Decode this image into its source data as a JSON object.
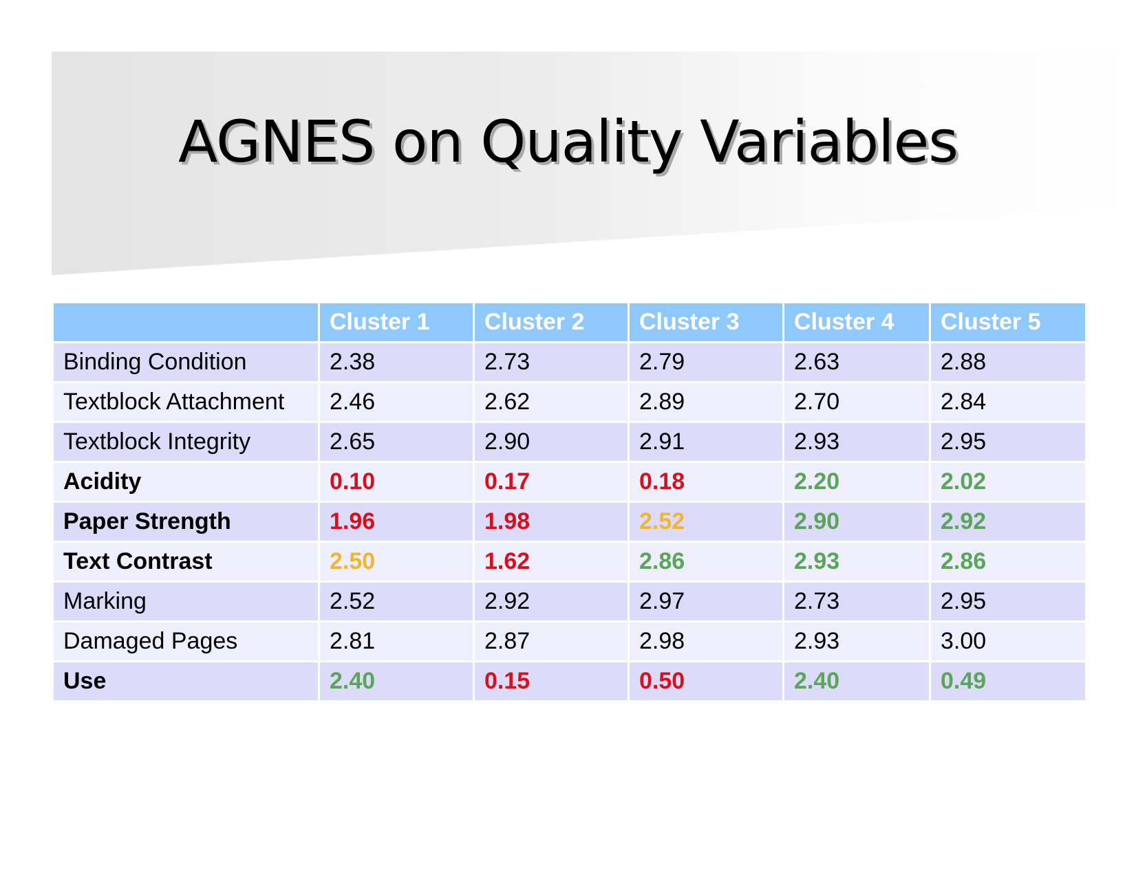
{
  "slide": {
    "title": "AGNES on Quality Variables"
  },
  "colors": {
    "header_bg": "#8fc9fb",
    "row_odd_bg": "#dcdcfa",
    "row_even_bg": "#eeeefc",
    "red": "#d7101e",
    "amber": "#f0b632",
    "green": "#5aa55a"
  },
  "table": {
    "corner": "",
    "columns": [
      "Cluster 1",
      "Cluster 2",
      "Cluster 3",
      "Cluster 4",
      "Cluster 5"
    ],
    "rows": [
      {
        "label": "Binding Condition",
        "bold": false,
        "values": [
          "2.38",
          "2.73",
          "2.79",
          "2.63",
          "2.88"
        ],
        "colors": [
          "",
          "",
          "",
          "",
          ""
        ]
      },
      {
        "label": "Textblock Attachment",
        "bold": false,
        "values": [
          "2.46",
          "2.62",
          "2.89",
          "2.70",
          "2.84"
        ],
        "colors": [
          "",
          "",
          "",
          "",
          ""
        ]
      },
      {
        "label": "Textblock Integrity",
        "bold": false,
        "values": [
          "2.65",
          "2.90",
          "2.91",
          "2.93",
          "2.95"
        ],
        "colors": [
          "",
          "",
          "",
          "",
          ""
        ]
      },
      {
        "label": "Acidity",
        "bold": true,
        "values": [
          "0.10",
          "0.17",
          "0.18",
          "2.20",
          "2.02"
        ],
        "colors": [
          "red",
          "red",
          "red",
          "green",
          "green"
        ]
      },
      {
        "label": "Paper Strength",
        "bold": true,
        "values": [
          "1.96",
          "1.98",
          "2.52",
          "2.90",
          "2.92"
        ],
        "colors": [
          "red",
          "red",
          "amber",
          "green",
          "green"
        ]
      },
      {
        "label": "Text Contrast",
        "bold": true,
        "values": [
          "2.50",
          "1.62",
          "2.86",
          "2.93",
          "2.86"
        ],
        "colors": [
          "amber",
          "red",
          "green",
          "green",
          "green"
        ]
      },
      {
        "label": "Marking",
        "bold": false,
        "values": [
          "2.52",
          "2.92",
          "2.97",
          "2.73",
          "2.95"
        ],
        "colors": [
          "",
          "",
          "",
          "",
          ""
        ]
      },
      {
        "label": "Damaged Pages",
        "bold": false,
        "values": [
          "2.81",
          "2.87",
          "2.98",
          "2.93",
          "3.00"
        ],
        "colors": [
          "",
          "",
          "",
          "",
          ""
        ]
      },
      {
        "label": "Use",
        "bold": true,
        "values": [
          "2.40",
          "0.15",
          "0.50",
          "2.40",
          "0.49"
        ],
        "colors": [
          "green",
          "red",
          "red",
          "green",
          "green"
        ]
      }
    ]
  }
}
